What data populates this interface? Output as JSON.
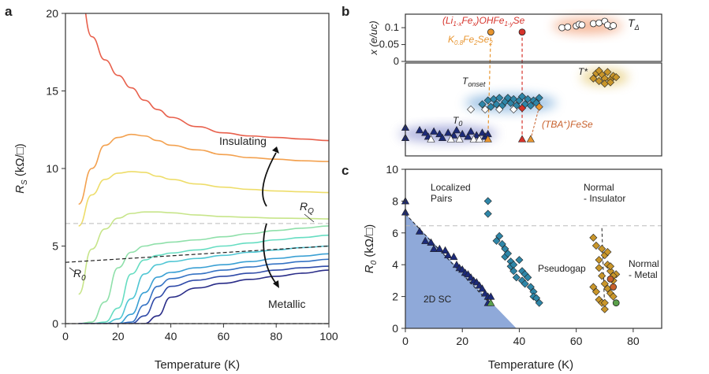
{
  "panel_labels": {
    "a": "a",
    "b": "b",
    "c": "c"
  },
  "colors": {
    "frame": "#333333",
    "sc_fill": "#8fa9d9",
    "dashed_ref": "#bbbbbb",
    "t0_glow": "#7b82c9",
    "tonset_glow": "#6fa6d8",
    "tdelta_glow": "#f2a27a",
    "tstar_glow": "#e3c66a",
    "navy": "#1c2a78",
    "teal": "#2e86a8",
    "gold": "#c9962a",
    "orange": "#e8952f",
    "red": "#d6332b",
    "brown": "#c8612d",
    "green": "#5aa04a"
  },
  "chart_data": [
    {
      "id": "a",
      "type": "line",
      "xlabel": "Temperature (K)",
      "ylabel_main": "R",
      "ylabel_sub": "S",
      "ylabel_unit": " (kΩ/□)",
      "xlim": [
        0,
        100
      ],
      "ylim": [
        0,
        20
      ],
      "xticks": [
        0,
        20,
        40,
        60,
        80,
        100
      ],
      "yticks": [
        0,
        5,
        10,
        15,
        20
      ],
      "x": [
        5,
        10,
        15,
        20,
        25,
        30,
        35,
        40,
        50,
        60,
        70,
        80,
        90,
        100
      ],
      "series": [
        {
          "name": "s1",
          "color": "#e8604c",
          "values": [
            22,
            18.5,
            17,
            16,
            15.2,
            14.4,
            13.8,
            13.3,
            12.7,
            12.3,
            12.1,
            12.0,
            11.9,
            11.8
          ]
        },
        {
          "name": "s2",
          "color": "#f3a14f",
          "values": [
            7.7,
            10.0,
            11.5,
            12.0,
            12.2,
            12.1,
            11.8,
            11.5,
            11.2,
            10.9,
            10.7,
            10.6,
            10.5,
            10.45
          ]
        },
        {
          "name": "s3",
          "color": "#eedd6a",
          "values": [
            6.3,
            8.3,
            9.3,
            9.7,
            9.8,
            9.75,
            9.5,
            9.3,
            9.0,
            8.8,
            8.65,
            8.55,
            8.5,
            8.45
          ]
        },
        {
          "name": "s4",
          "color": "#c7e58a",
          "values": [
            1.9,
            4.8,
            6.1,
            6.8,
            7.1,
            7.2,
            7.2,
            7.15,
            7.0,
            6.9,
            6.85,
            6.8,
            6.78,
            6.75
          ]
        },
        {
          "name": "s5",
          "color": "#8fe0aa",
          "values": [
            0.0,
            0.1,
            1.4,
            3.6,
            4.6,
            5.0,
            5.15,
            5.25,
            5.4,
            5.6,
            5.8,
            6.0,
            6.15,
            6.3
          ]
        },
        {
          "name": "s6",
          "color": "#66ddc2",
          "values": [
            0.0,
            0.0,
            0.1,
            1.0,
            3.2,
            4.1,
            4.4,
            4.55,
            4.75,
            5.0,
            5.2,
            5.4,
            5.55,
            5.7
          ]
        },
        {
          "name": "s7",
          "color": "#4fc6d4",
          "values": [
            0.0,
            0.0,
            0.0,
            0.3,
            1.6,
            3.2,
            3.8,
            4.0,
            4.2,
            4.4,
            4.6,
            4.75,
            4.9,
            5.0
          ]
        },
        {
          "name": "s8",
          "color": "#3aa0d4",
          "values": [
            0.0,
            0.0,
            0.0,
            0.0,
            0.6,
            2.0,
            3.0,
            3.3,
            3.6,
            3.8,
            4.0,
            4.2,
            4.35,
            4.5
          ]
        },
        {
          "name": "s9",
          "color": "#3472c4",
          "values": [
            0.0,
            0.0,
            0.0,
            0.0,
            0.1,
            1.2,
            2.4,
            2.9,
            3.2,
            3.45,
            3.65,
            3.85,
            4.0,
            4.15
          ]
        },
        {
          "name": "s10",
          "color": "#2f4aa8",
          "values": [
            0.0,
            0.0,
            0.0,
            0.0,
            0.0,
            0.5,
            1.7,
            2.4,
            2.8,
            3.05,
            3.25,
            3.45,
            3.6,
            3.7
          ]
        },
        {
          "name": "s11",
          "color": "#2a2d88",
          "values": [
            0.0,
            0.0,
            0.0,
            0.0,
            0.0,
            0.0,
            0.5,
            1.7,
            2.3,
            2.6,
            2.85,
            3.05,
            3.25,
            3.45
          ]
        }
      ],
      "ref_lines": {
        "RQ": 6.45,
        "zero": 0.0,
        "R0_x": [
          0,
          100
        ],
        "R0_y": [
          3.95,
          5.0
        ]
      },
      "annotations": {
        "insulating": "Insulating",
        "metallic": "Metallic",
        "rq_main": "R",
        "rq_sub": "Q",
        "r0_main": "R",
        "r0_sub": "0"
      }
    },
    {
      "id": "b-top",
      "type": "scatter",
      "ylabel": "x (e/uc)",
      "xlim": [
        0,
        90
      ],
      "ylim": [
        0,
        0.14
      ],
      "yticks": [
        0,
        0.05,
        0.1
      ],
      "ytick_labels": [
        "0",
        "0.05",
        "0.1"
      ],
      "series": [
        {
          "name": "T_delta",
          "marker": "circle",
          "color": "#ffffff",
          "x": [
            55,
            57,
            60,
            61,
            62,
            66,
            68,
            70,
            72,
            71,
            73
          ],
          "y": [
            0.1,
            0.102,
            0.105,
            0.11,
            0.108,
            0.112,
            0.114,
            0.119,
            0.103,
            0.108,
            0.106
          ]
        },
        {
          "name": "K0.8Fe2Se2",
          "marker": "circle",
          "color": "#e8952f",
          "x": [
            30
          ],
          "y": [
            0.087
          ]
        },
        {
          "name": "(Li1-xFex)OHFe1-ySe",
          "marker": "circle",
          "color": "#d6332b",
          "x": [
            41
          ],
          "y": [
            0.087
          ]
        }
      ],
      "labels": {
        "li_compound": "(Li",
        "li_sub1": "1-x",
        "li_mid": "Fe",
        "li_sub2": "x",
        "li_end": ")OHFe",
        "li_sub3": "1-y",
        "li_tail": "Se",
        "k_compound": "K",
        "k_sub": "0.8",
        "k_mid": "Fe",
        "k_sub2": "2",
        "k_end": "Se",
        "k_sub3": "2",
        "tdelta_main": "T",
        "tdelta_sub": "Δ"
      }
    },
    {
      "id": "b-bottom",
      "type": "scatter",
      "xlim": [
        0,
        90
      ],
      "series": [
        {
          "name": "T0",
          "marker": "triangle",
          "color": "#1c2a78",
          "x": [
            0,
            0,
            5,
            7,
            8,
            10,
            12,
            13,
            15,
            17,
            18,
            20,
            22,
            23,
            25,
            27,
            28,
            29
          ],
          "y": [
            2.2,
            1.4,
            2.0,
            1.8,
            1.5,
            1.9,
            1.7,
            1.4,
            1.8,
            1.6,
            2.0,
            1.7,
            1.5,
            1.9,
            1.6,
            1.8,
            1.5,
            1.7
          ]
        },
        {
          "name": "T0-open",
          "marker": "triangle",
          "color": "#ffffff",
          "x": [
            9,
            16,
            19,
            24,
            26
          ],
          "y": [
            1.3,
            1.3,
            1.3,
            1.3,
            1.3
          ]
        },
        {
          "name": "Tonset",
          "marker": "diamond",
          "color": "#2e86a8",
          "x": [
            27,
            29,
            30,
            31,
            32,
            33,
            34,
            35,
            36,
            37,
            38,
            39,
            40,
            41,
            42,
            43,
            44,
            45,
            46,
            47
          ],
          "y": [
            4.0,
            4.3,
            3.8,
            4.4,
            4.0,
            4.5,
            3.9,
            4.2,
            4.5,
            4.1,
            4.4,
            3.9,
            4.3,
            4.6,
            4.0,
            4.4,
            3.9,
            4.3,
            4.1,
            4.5
          ]
        },
        {
          "name": "Tonset-open",
          "marker": "diamond",
          "color": "#ffffff",
          "x": [
            23,
            28,
            33,
            38
          ],
          "y": [
            3.6,
            3.6,
            3.6,
            3.6
          ]
        },
        {
          "name": "Tstar",
          "marker": "diamond",
          "color": "#c9962a",
          "x": [
            66,
            67,
            68,
            69,
            70,
            71,
            72,
            73,
            74,
            70,
            72,
            68
          ],
          "y": [
            6.0,
            6.4,
            5.8,
            6.3,
            6.0,
            6.5,
            5.9,
            6.2,
            6.1,
            5.6,
            5.7,
            6.6
          ]
        },
        {
          "name": "Tonset-red",
          "marker": "diamond",
          "color": "#d6332b",
          "x": [
            41
          ],
          "y": [
            3.7
          ]
        },
        {
          "name": "T0-red",
          "marker": "triangle",
          "color": "#d6332b",
          "x": [
            41
          ],
          "y": [
            1.3
          ]
        },
        {
          "name": "T0-orange",
          "marker": "triangle",
          "color": "#e8952f",
          "x": [
            29,
            44
          ],
          "y": [
            1.3,
            1.3
          ]
        },
        {
          "name": "Tonset-orange",
          "marker": "diamond",
          "color": "#e8952f",
          "x": [
            47
          ],
          "y": [
            3.8
          ]
        }
      ],
      "labels": {
        "tonset_main": "T",
        "tonset_sub": "onset",
        "t0_main": "T",
        "t0_sub": "0",
        "tstar": "T*",
        "tba": "(TBA",
        "tba_sup": "+",
        "tba_end": ")FeSe"
      }
    },
    {
      "id": "c",
      "type": "scatter",
      "xlabel": "Temperature (K)",
      "ylabel_main": "R",
      "ylabel_sub": "0",
      "ylabel_unit": " (kΩ/□)",
      "xlim": [
        0,
        90
      ],
      "ylim": [
        0,
        10
      ],
      "xticks": [
        0,
        20,
        40,
        60,
        80
      ],
      "yticks": [
        0,
        2,
        4,
        6,
        8,
        10
      ],
      "ref_line_y": 6.45,
      "sc_region": {
        "x": [
          0,
          0,
          39
        ],
        "y": [
          0,
          7.2,
          0
        ]
      },
      "series": [
        {
          "name": "T0",
          "marker": "triangle",
          "color": "#1c2a78",
          "x": [
            0,
            0,
            5,
            7,
            9,
            10,
            12,
            14,
            15,
            17,
            18,
            19,
            20,
            21,
            22,
            23,
            24,
            25,
            26,
            27,
            28,
            29,
            30,
            29
          ],
          "y": [
            8.0,
            7.3,
            6.1,
            5.5,
            5.4,
            5.0,
            5.0,
            4.9,
            4.6,
            4.5,
            4.0,
            3.8,
            3.7,
            3.5,
            3.4,
            3.2,
            3.0,
            2.9,
            2.7,
            2.5,
            2.2,
            2.0,
            2.0,
            1.6
          ]
        },
        {
          "name": "Tonset",
          "marker": "diamond",
          "color": "#2e86a8",
          "x": [
            29,
            29,
            32,
            33,
            34,
            35,
            35,
            36,
            37,
            37,
            38,
            38,
            39,
            40,
            41,
            41,
            42,
            42,
            43,
            44,
            45,
            45,
            46,
            47
          ],
          "y": [
            8.0,
            7.2,
            5.5,
            5.8,
            5.3,
            5.0,
            4.5,
            4.7,
            4.2,
            3.9,
            4.0,
            3.6,
            3.2,
            4.3,
            3.6,
            3.0,
            3.4,
            2.8,
            3.2,
            2.6,
            2.3,
            2.0,
            1.9,
            1.6
          ]
        },
        {
          "name": "Tstar",
          "marker": "diamond",
          "color": "#c9962a",
          "x": [
            66,
            67,
            68,
            68,
            69,
            69,
            70,
            70,
            71,
            71,
            72,
            72,
            73,
            73,
            74,
            66,
            67,
            68,
            69,
            70,
            71,
            72,
            73,
            70
          ],
          "y": [
            5.7,
            5.2,
            4.3,
            3.8,
            5.0,
            3.3,
            4.6,
            2.8,
            4.0,
            2.5,
            3.6,
            2.2,
            3.0,
            2.0,
            3.4,
            2.6,
            2.3,
            1.8,
            1.6,
            1.2,
            4.8,
            3.9,
            3.3,
            1.6
          ]
        },
        {
          "name": "Tstar-brown",
          "marker": "circle",
          "color": "#c8612d",
          "x": [
            73,
            72
          ],
          "y": [
            2.6,
            3.1
          ]
        },
        {
          "name": "Tstar-green",
          "marker": "circle",
          "color": "#5aa04a",
          "x": [
            74
          ],
          "y": [
            1.6
          ]
        },
        {
          "name": "green-tri",
          "marker": "triangle",
          "color": "#5aa04a",
          "x": [
            30
          ],
          "y": [
            1.6
          ]
        }
      ],
      "guide_lines": {
        "sc_x": [
          0,
          30
        ],
        "sc_y": [
          7.2,
          1.5
        ],
        "ni_x": [
          69,
          70
        ],
        "ni_y": [
          6.3,
          1.1
        ]
      },
      "labels": {
        "localized": "Localized",
        "pairs": "Pairs",
        "normal_ins1": "Normal",
        "normal_ins2": "- Insulator",
        "pseudogap": "Pseudogap",
        "normal_met1": "Normal",
        "normal_met2": "- Metal",
        "sc": "2D SC"
      }
    }
  ]
}
